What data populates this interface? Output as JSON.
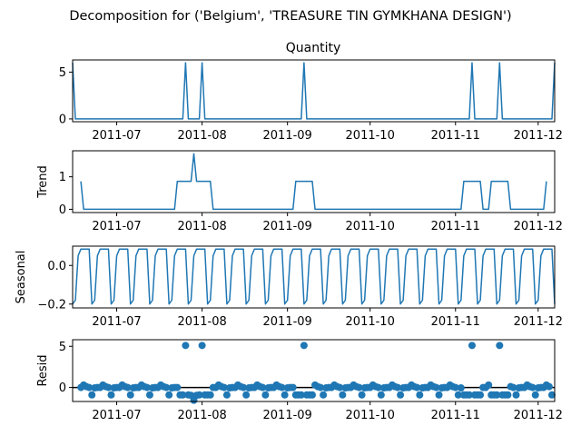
{
  "suptitle": "Decomposition for ('Belgium', 'TREASURE TIN GYMKHANA DESIGN')",
  "x_ticks": [
    "2011-07",
    "2011-08",
    "2011-09",
    "2011-10",
    "2011-11",
    "2011-12"
  ],
  "colors": {
    "line": "#1f77b4",
    "axis": "#000000",
    "zero_line": "#000000"
  },
  "chart_data": [
    {
      "type": "line",
      "title": "Quantity",
      "ylabel": "",
      "x_start": "2011-06-15",
      "x_end": "2011-12-07",
      "ylim": [
        -0.3,
        6.3
      ],
      "yticks": [
        0,
        5
      ],
      "series": [
        {
          "points": [
            [
              "2011-06-15",
              6
            ],
            [
              "2011-06-16",
              0
            ],
            [
              "2011-07-25",
              0
            ],
            [
              "2011-07-26",
              6
            ],
            [
              "2011-07-27",
              0
            ],
            [
              "2011-07-31",
              0
            ],
            [
              "2011-08-01",
              6
            ],
            [
              "2011-08-02",
              0
            ],
            [
              "2011-09-06",
              0
            ],
            [
              "2011-09-07",
              6
            ],
            [
              "2011-09-08",
              0
            ],
            [
              "2011-11-06",
              0
            ],
            [
              "2011-11-07",
              6
            ],
            [
              "2011-11-08",
              0
            ],
            [
              "2011-11-16",
              0
            ],
            [
              "2011-11-17",
              6
            ],
            [
              "2011-11-18",
              0
            ],
            [
              "2011-12-06",
              0
            ],
            [
              "2011-12-07",
              6
            ]
          ]
        }
      ]
    },
    {
      "type": "line",
      "title": "",
      "ylabel": "Trend",
      "x_start": "2011-06-15",
      "x_end": "2011-12-07",
      "ylim": [
        -0.1,
        1.8
      ],
      "yticks": [
        0,
        1
      ],
      "series": [
        {
          "points": [
            [
              "2011-06-18",
              0.86
            ],
            [
              "2011-06-19",
              0
            ],
            [
              "2011-07-22",
              0
            ],
            [
              "2011-07-23",
              0.86
            ],
            [
              "2011-07-28",
              0.86
            ],
            [
              "2011-07-29",
              1.71
            ],
            [
              "2011-07-30",
              0.86
            ],
            [
              "2011-08-04",
              0.86
            ],
            [
              "2011-08-05",
              0
            ],
            [
              "2011-09-03",
              0
            ],
            [
              "2011-09-04",
              0.86
            ],
            [
              "2011-09-10",
              0.86
            ],
            [
              "2011-09-11",
              0
            ],
            [
              "2011-11-03",
              0
            ],
            [
              "2011-11-04",
              0.86
            ],
            [
              "2011-11-10",
              0.86
            ],
            [
              "2011-11-11",
              0
            ],
            [
              "2011-11-13",
              0
            ],
            [
              "2011-11-14",
              0.86
            ],
            [
              "2011-11-20",
              0.86
            ],
            [
              "2011-11-21",
              0
            ],
            [
              "2011-12-03",
              0
            ],
            [
              "2011-12-04",
              0.86
            ]
          ]
        }
      ]
    },
    {
      "type": "line",
      "title": "",
      "ylabel": "Seasonal",
      "x_start": "2011-06-15",
      "x_end": "2011-12-07",
      "ylim": [
        -0.22,
        0.1
      ],
      "yticks": [
        -0.2,
        0.0
      ],
      "yticklabels": [
        "−0.2",
        "0.0"
      ],
      "period_start": "2011-06-15",
      "period_days": 7,
      "period_end": "2011-12-07",
      "weekly_pattern": [
        -0.2,
        -0.18,
        0.05,
        0.085,
        0.085,
        0.085,
        0.085
      ]
    },
    {
      "type": "scatter",
      "title": "",
      "ylabel": "Resid",
      "x_start": "2011-06-15",
      "x_end": "2011-12-07",
      "ylim": [
        -1.7,
        5.8
      ],
      "yticks": [
        0,
        5
      ],
      "zero_line": true,
      "residual_baseline": [
        -0.9,
        -0.05,
        0.0,
        0.0,
        0.3,
        0.1,
        0.0
      ],
      "outliers": [
        [
          "2011-07-26",
          5.1
        ],
        [
          "2011-08-01",
          5.1
        ],
        [
          "2011-09-07",
          5.1
        ],
        [
          "2011-11-07",
          5.1
        ],
        [
          "2011-11-17",
          5.1
        ]
      ],
      "dips": [
        [
          "2011-07-29",
          -1.55
        ],
        [
          "2011-07-28",
          -0.95
        ],
        [
          "2011-07-30",
          -0.95
        ],
        [
          "2011-07-24",
          -0.9
        ],
        [
          "2011-07-25",
          -0.9
        ],
        [
          "2011-07-31",
          -0.9
        ],
        [
          "2011-08-02",
          -0.9
        ],
        [
          "2011-08-03",
          -0.9
        ],
        [
          "2011-08-04",
          -0.9
        ],
        [
          "2011-09-04",
          -0.9
        ],
        [
          "2011-09-05",
          -0.9
        ],
        [
          "2011-09-06",
          -0.9
        ],
        [
          "2011-09-08",
          -0.9
        ],
        [
          "2011-09-09",
          -0.9
        ],
        [
          "2011-09-10",
          -0.9
        ],
        [
          "2011-11-04",
          -0.9
        ],
        [
          "2011-11-05",
          -0.9
        ],
        [
          "2011-11-06",
          -0.9
        ],
        [
          "2011-11-08",
          -0.9
        ],
        [
          "2011-11-09",
          -0.9
        ],
        [
          "2011-11-10",
          -0.9
        ],
        [
          "2011-11-14",
          -0.9
        ],
        [
          "2011-11-15",
          -0.9
        ],
        [
          "2011-11-16",
          -0.9
        ],
        [
          "2011-11-18",
          -0.9
        ],
        [
          "2011-11-19",
          -0.9
        ],
        [
          "2011-11-20",
          -0.9
        ],
        [
          "2011-12-06",
          -0.9
        ]
      ]
    }
  ]
}
